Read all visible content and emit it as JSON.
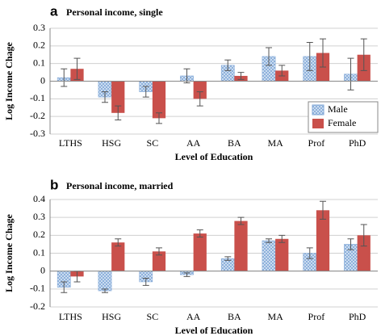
{
  "chart_data": [
    {
      "type": "bar",
      "panel": "a",
      "title": "Personal income, single",
      "y_label": "Log Income Chage",
      "x_label": "Level of Education",
      "categories": [
        "LTHS",
        "HSG",
        "SC",
        "AA",
        "BA",
        "MA",
        "Prof",
        "PhD"
      ],
      "series": [
        {
          "name": "Male",
          "color": "#a9c6e8",
          "pattern": "crosshatch",
          "values": [
            0.02,
            -0.09,
            -0.06,
            0.03,
            0.09,
            0.14,
            0.14,
            0.04
          ],
          "errors": [
            0.05,
            0.03,
            0.03,
            0.04,
            0.03,
            0.05,
            0.08,
            0.09
          ]
        },
        {
          "name": "Female",
          "color": "#c9504b",
          "values": [
            0.07,
            -0.18,
            -0.21,
            -0.1,
            0.03,
            0.06,
            0.16,
            0.15
          ],
          "errors": [
            0.06,
            0.04,
            0.03,
            0.04,
            0.02,
            0.03,
            0.08,
            0.09
          ]
        }
      ],
      "ylim": [
        -0.3,
        0.3
      ],
      "yticks": [
        -0.3,
        -0.2,
        -0.1,
        0,
        0.1,
        0.2,
        0.3
      ],
      "grid": true,
      "legend": "right"
    },
    {
      "type": "bar",
      "panel": "b",
      "title": "Personal income, married",
      "y_label": "Log Income Chage",
      "x_label": "Level of Education",
      "categories": [
        "LTHS",
        "HSG",
        "SC",
        "AA",
        "BA",
        "MA",
        "Prof",
        "PhD"
      ],
      "series": [
        {
          "name": "Male",
          "color": "#a9c6e8",
          "pattern": "crosshatch",
          "values": [
            -0.09,
            -0.11,
            -0.06,
            -0.02,
            0.07,
            0.17,
            0.1,
            0.15
          ],
          "errors": [
            0.03,
            0.01,
            0.02,
            0.01,
            0.01,
            0.01,
            0.03,
            0.03
          ]
        },
        {
          "name": "Female",
          "color": "#c9504b",
          "values": [
            -0.03,
            0.16,
            0.11,
            0.21,
            0.28,
            0.18,
            0.34,
            0.2
          ],
          "errors": [
            0.03,
            0.02,
            0.02,
            0.02,
            0.02,
            0.02,
            0.05,
            0.06
          ]
        }
      ],
      "ylim": [
        -0.2,
        0.4
      ],
      "yticks": [
        -0.2,
        -0.1,
        0,
        0.1,
        0.2,
        0.3,
        0.4
      ],
      "grid": true,
      "legend": "none"
    }
  ]
}
